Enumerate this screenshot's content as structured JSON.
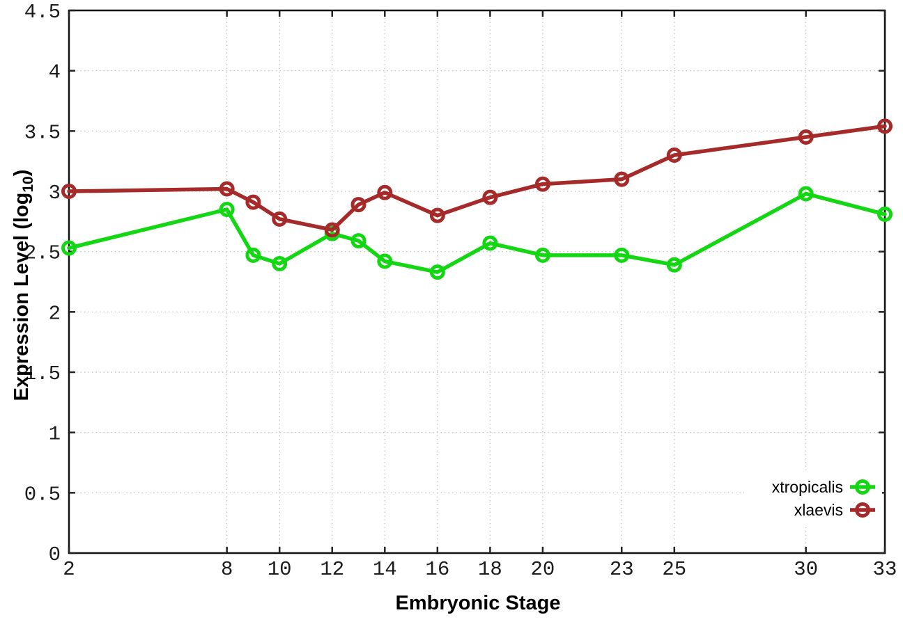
{
  "chart_data": {
    "type": "line",
    "title": "",
    "xlabel": "Embryonic Stage",
    "ylabel": "Expression Level (log10)",
    "ylabel_parts": {
      "prefix": "Expression Level (log",
      "sub": "10",
      "suffix": ")"
    },
    "x": [
      2,
      8,
      9,
      10,
      12,
      13,
      14,
      16,
      18,
      20,
      23,
      25,
      30,
      33
    ],
    "xticks": [
      2,
      8,
      10,
      12,
      14,
      16,
      18,
      20,
      23,
      25,
      30,
      33
    ],
    "yticks": [
      0,
      0.5,
      1,
      1.5,
      2,
      2.5,
      3,
      3.5,
      4,
      4.5
    ],
    "xlim": [
      2,
      33
    ],
    "ylim": [
      0,
      4.5
    ],
    "grid": true,
    "grid_style": "dotted",
    "legend_position": "bottom-right",
    "marker": "open-circle",
    "series": [
      {
        "name": "xtropicalis",
        "color": "#14d714",
        "values": [
          2.53,
          2.85,
          2.47,
          2.4,
          2.65,
          2.59,
          2.42,
          2.33,
          2.57,
          2.47,
          2.47,
          2.39,
          2.98,
          2.81
        ]
      },
      {
        "name": "xlaevis",
        "color": "#a52a2a",
        "values": [
          3.0,
          3.02,
          2.91,
          2.77,
          2.68,
          2.89,
          2.99,
          2.8,
          2.95,
          3.06,
          3.1,
          3.3,
          3.45,
          3.54
        ]
      }
    ]
  },
  "colors": {
    "background": "#ffffff",
    "border": "#111111",
    "grid": "#bdbdbd",
    "tick": "#222222",
    "text": "#000000"
  }
}
